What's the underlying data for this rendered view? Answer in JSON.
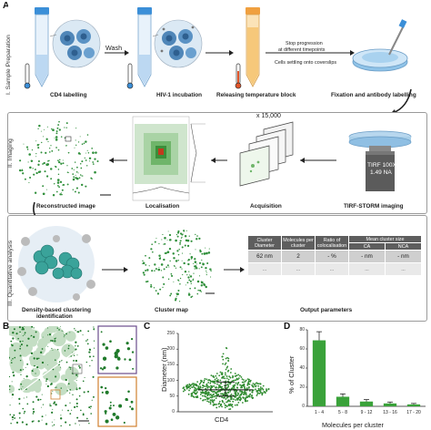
{
  "panel_letters": {
    "a": "A",
    "b": "B",
    "c": "C",
    "d": "D"
  },
  "sections": {
    "s1": "I. Sample Preparation",
    "s2": "II. Imaging",
    "s3": "III. Quantitative analysis"
  },
  "prep": {
    "wash": "Wash",
    "cd4_labelling": "CD4 labelling",
    "hiv_incubation": "HIV-1 incubation",
    "releasing_block": "Releasing temperature block",
    "stop_progression": "Stop progression",
    "timepoints": "at different timepoints",
    "cells_settling": "Cells settling onto coverslips",
    "fixation": "Fixation and antibody labelling"
  },
  "imaging": {
    "reconstructed": "Reconstructed image",
    "localisation": "Localisation",
    "acquisition": "Acquisition",
    "frames": "x 15,000",
    "tirf_storm": "TIRF-STORM imaging",
    "objective_line1": "TIRF 100X",
    "objective_line2": "1.49 NA"
  },
  "analysis": {
    "dbscan_line1": "Density-based clustering",
    "dbscan_line2": "identification",
    "cluster_map": "Cluster map",
    "output_params": "Output parameters",
    "table_headers": [
      "Cluster Diameter",
      "Molecules per cluster",
      "Ratio of colocalisation",
      "Mean cluster size"
    ],
    "sub_headers": [
      "CA",
      "NCA"
    ],
    "row1": [
      "62 nm",
      "2",
      "- %",
      "- nm",
      "- nm"
    ],
    "row2": [
      "...",
      "...",
      "...",
      "...",
      "..."
    ]
  },
  "panel_c": {
    "ylabel": "Diameter (nm)",
    "xlabel": "CD4",
    "yticks": [
      "0",
      "50",
      "100",
      "150",
      "200",
      "250"
    ]
  },
  "panel_d": {
    "ylabel": "% of Cluster",
    "xlabel": "Molecules per cluster",
    "yticks": [
      "0",
      "20",
      "40",
      "60",
      "80"
    ]
  },
  "chart_data": [
    {
      "type": "scatter",
      "categories": [
        "CD4"
      ],
      "ylabel": "Diameter (nm)",
      "xlabel": "CD4",
      "ylim": [
        0,
        250
      ],
      "median": 70,
      "quartiles": [
        50,
        95
      ],
      "range": [
        8,
        205
      ],
      "color": "#2e8b2e"
    },
    {
      "type": "bar",
      "categories": [
        "1 - 4",
        "5 - 8",
        "9 - 12",
        "13 - 16",
        "17 - 20"
      ],
      "values": [
        69,
        10,
        5,
        3,
        2
      ],
      "errors": [
        9,
        3,
        2,
        1.5,
        1
      ],
      "xlabel": "Molecules per cluster",
      "ylabel": "% of Cluster",
      "ylim": [
        0,
        80
      ],
      "color": "#3aa23a"
    }
  ]
}
